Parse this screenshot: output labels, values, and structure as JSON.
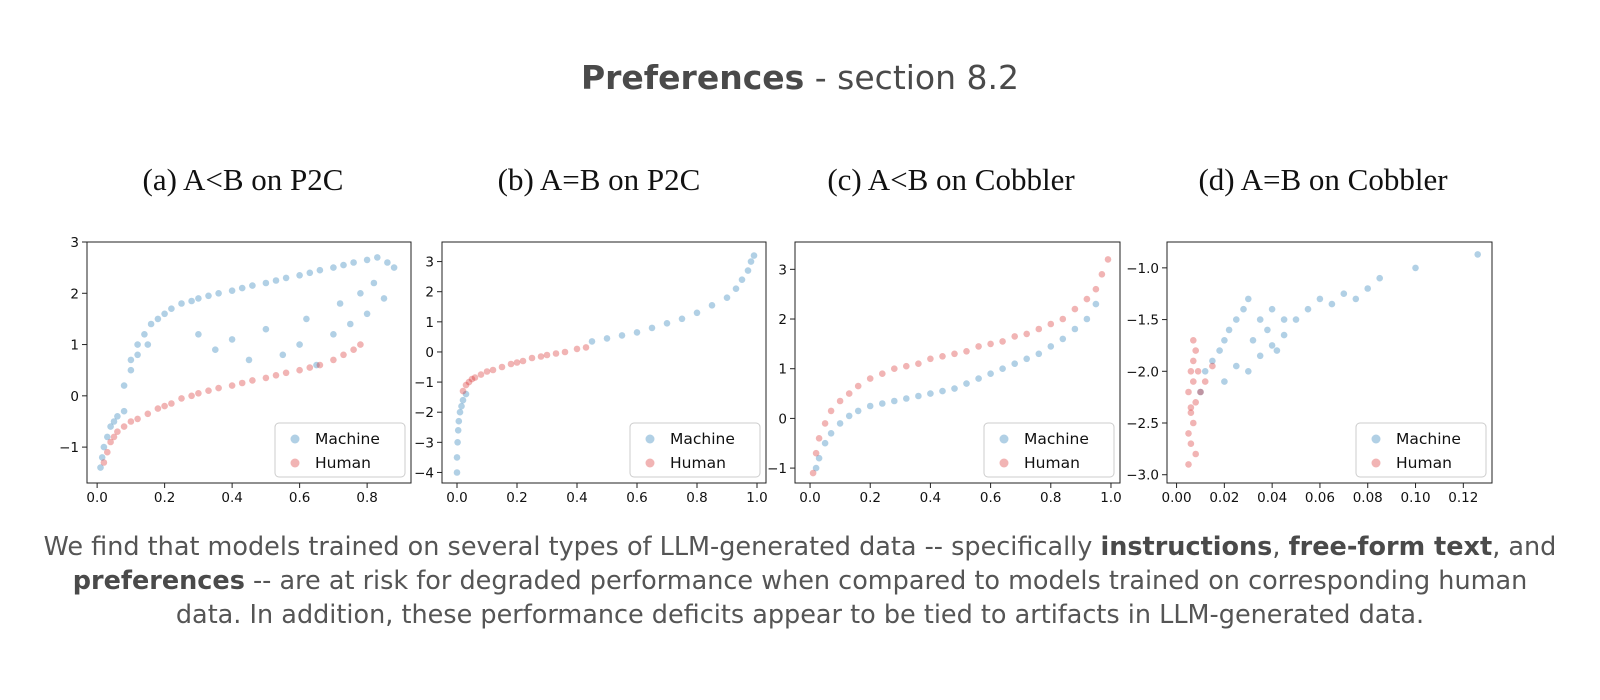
{
  "title": {
    "bold": "Preferences",
    "rest": " - section 8.2"
  },
  "colors": {
    "machine": "#1f77b4",
    "human": "#d62728",
    "text": "#4a4a4a"
  },
  "chart_data": [
    {
      "type": "scatter",
      "subtitle": "(a) A<B on P2C",
      "xlim": [
        -0.03,
        0.93
      ],
      "ylim": [
        -1.7,
        3.0
      ],
      "xticks": [
        "0.0",
        "0.2",
        "0.4",
        "0.6",
        "0.8"
      ],
      "yticks": [
        "3",
        "2",
        "1",
        "0",
        "−1"
      ],
      "xtick_values": [
        0,
        0.2,
        0.4,
        0.6,
        0.8
      ],
      "ytick_values": [
        3,
        2,
        1,
        0,
        -1
      ],
      "legend": "bottom-right",
      "series": [
        {
          "name": "Machine",
          "x": [
            0.01,
            0.015,
            0.02,
            0.03,
            0.04,
            0.05,
            0.06,
            0.08,
            0.1,
            0.12,
            0.14,
            0.16,
            0.18,
            0.2,
            0.22,
            0.25,
            0.28,
            0.3,
            0.33,
            0.36,
            0.4,
            0.43,
            0.46,
            0.5,
            0.53,
            0.56,
            0.6,
            0.63,
            0.66,
            0.7,
            0.73,
            0.76,
            0.8,
            0.83,
            0.86,
            0.88,
            0.08,
            0.1,
            0.12,
            0.15,
            0.3,
            0.35,
            0.4,
            0.45,
            0.5,
            0.55,
            0.6,
            0.62,
            0.65,
            0.7,
            0.72,
            0.75,
            0.78,
            0.8,
            0.82,
            0.85
          ],
          "y": [
            -1.4,
            -1.2,
            -1.0,
            -0.8,
            -0.6,
            -0.5,
            -0.4,
            -0.3,
            0.7,
            1.0,
            1.2,
            1.4,
            1.5,
            1.6,
            1.7,
            1.8,
            1.85,
            1.9,
            1.95,
            2.0,
            2.05,
            2.1,
            2.15,
            2.2,
            2.25,
            2.3,
            2.35,
            2.4,
            2.45,
            2.5,
            2.55,
            2.6,
            2.65,
            2.7,
            2.6,
            2.5,
            0.2,
            0.5,
            0.8,
            1.0,
            1.2,
            0.9,
            1.1,
            0.7,
            1.3,
            0.8,
            1.0,
            1.5,
            0.6,
            1.2,
            1.8,
            1.4,
            2.0,
            1.6,
            2.2,
            1.9
          ]
        },
        {
          "name": "Human",
          "x": [
            0.02,
            0.03,
            0.04,
            0.05,
            0.06,
            0.08,
            0.1,
            0.12,
            0.15,
            0.18,
            0.2,
            0.22,
            0.25,
            0.28,
            0.3,
            0.33,
            0.36,
            0.4,
            0.43,
            0.46,
            0.5,
            0.53,
            0.56,
            0.6,
            0.63,
            0.66,
            0.7,
            0.73,
            0.76,
            0.78
          ],
          "y": [
            -1.3,
            -1.1,
            -0.9,
            -0.8,
            -0.7,
            -0.6,
            -0.5,
            -0.45,
            -0.35,
            -0.25,
            -0.2,
            -0.15,
            -0.05,
            0.0,
            0.05,
            0.1,
            0.15,
            0.2,
            0.25,
            0.3,
            0.35,
            0.4,
            0.45,
            0.5,
            0.55,
            0.6,
            0.7,
            0.8,
            0.9,
            1.0
          ]
        }
      ]
    },
    {
      "type": "scatter",
      "subtitle": "(b) A=B on P2C",
      "xlim": [
        -0.05,
        1.03
      ],
      "ylim": [
        -4.35,
        3.65
      ],
      "xticks": [
        "0.0",
        "0.2",
        "0.4",
        "0.6",
        "0.8",
        "1.0"
      ],
      "yticks": [
        "3",
        "2",
        "1",
        "0",
        "−1",
        "−2",
        "−3",
        "−4"
      ],
      "xtick_values": [
        0,
        0.2,
        0.4,
        0.6,
        0.8,
        1.0
      ],
      "ytick_values": [
        3,
        2,
        1,
        0,
        -1,
        -2,
        -3,
        -4
      ],
      "legend": "bottom-right",
      "series": [
        {
          "name": "Machine",
          "x": [
            0.0,
            0.0,
            0.002,
            0.004,
            0.006,
            0.01,
            0.015,
            0.02,
            0.03,
            0.45,
            0.5,
            0.55,
            0.6,
            0.65,
            0.7,
            0.75,
            0.8,
            0.85,
            0.9,
            0.93,
            0.95,
            0.97,
            0.98,
            0.99
          ],
          "y": [
            -4.0,
            -3.5,
            -3.0,
            -2.6,
            -2.3,
            -2.0,
            -1.8,
            -1.6,
            -1.4,
            0.35,
            0.45,
            0.55,
            0.65,
            0.8,
            0.95,
            1.1,
            1.3,
            1.55,
            1.8,
            2.1,
            2.4,
            2.7,
            3.0,
            3.2
          ]
        },
        {
          "name": "Human",
          "x": [
            0.02,
            0.03,
            0.04,
            0.05,
            0.06,
            0.08,
            0.1,
            0.12,
            0.15,
            0.18,
            0.2,
            0.22,
            0.25,
            0.28,
            0.3,
            0.33,
            0.36,
            0.4,
            0.43
          ],
          "y": [
            -1.3,
            -1.1,
            -1.0,
            -0.9,
            -0.85,
            -0.75,
            -0.65,
            -0.6,
            -0.5,
            -0.4,
            -0.35,
            -0.3,
            -0.2,
            -0.15,
            -0.1,
            -0.05,
            0.0,
            0.1,
            0.15
          ]
        }
      ]
    },
    {
      "type": "scatter",
      "subtitle": "(c) A<B on Cobbler",
      "xlim": [
        -0.05,
        1.03
      ],
      "ylim": [
        -1.3,
        3.55
      ],
      "xticks": [
        "0.0",
        "0.2",
        "0.4",
        "0.6",
        "0.8",
        "1.0"
      ],
      "yticks": [
        "3",
        "2",
        "1",
        "0",
        "−1"
      ],
      "xtick_values": [
        0,
        0.2,
        0.4,
        0.6,
        0.8,
        1.0
      ],
      "ytick_values": [
        3,
        2,
        1,
        0,
        -1
      ],
      "legend": "bottom-right",
      "series": [
        {
          "name": "Machine",
          "x": [
            0.02,
            0.03,
            0.05,
            0.07,
            0.1,
            0.13,
            0.16,
            0.2,
            0.24,
            0.28,
            0.32,
            0.36,
            0.4,
            0.44,
            0.48,
            0.52,
            0.56,
            0.6,
            0.64,
            0.68,
            0.72,
            0.76,
            0.8,
            0.84,
            0.88,
            0.92,
            0.95
          ],
          "y": [
            -1.0,
            -0.8,
            -0.5,
            -0.3,
            -0.1,
            0.05,
            0.15,
            0.25,
            0.3,
            0.35,
            0.4,
            0.45,
            0.5,
            0.55,
            0.6,
            0.7,
            0.8,
            0.9,
            1.0,
            1.1,
            1.2,
            1.3,
            1.45,
            1.6,
            1.8,
            2.0,
            2.3
          ]
        },
        {
          "name": "Human",
          "x": [
            0.01,
            0.02,
            0.03,
            0.05,
            0.07,
            0.1,
            0.13,
            0.16,
            0.2,
            0.24,
            0.28,
            0.32,
            0.36,
            0.4,
            0.44,
            0.48,
            0.52,
            0.56,
            0.6,
            0.64,
            0.68,
            0.72,
            0.76,
            0.8,
            0.84,
            0.88,
            0.92,
            0.95,
            0.97,
            0.99
          ],
          "y": [
            -1.1,
            -0.7,
            -0.4,
            -0.1,
            0.15,
            0.35,
            0.5,
            0.65,
            0.8,
            0.9,
            1.0,
            1.05,
            1.1,
            1.2,
            1.25,
            1.3,
            1.35,
            1.45,
            1.5,
            1.55,
            1.65,
            1.7,
            1.8,
            1.9,
            2.0,
            2.2,
            2.4,
            2.6,
            2.9,
            3.2
          ]
        }
      ]
    },
    {
      "type": "scatter",
      "subtitle": "(d) A=B on Cobbler",
      "xlim": [
        -0.004,
        0.132
      ],
      "ylim": [
        -3.08,
        -0.75
      ],
      "xticks": [
        "0.00",
        "0.02",
        "0.04",
        "0.06",
        "0.08",
        "0.10",
        "0.12"
      ],
      "yticks": [
        "−1.0",
        "−1.5",
        "−2.0",
        "−2.5",
        "−3.0"
      ],
      "xtick_values": [
        0,
        0.02,
        0.04,
        0.06,
        0.08,
        0.1,
        0.12
      ],
      "ytick_values": [
        -1.0,
        -1.5,
        -2.0,
        -2.5,
        -3.0
      ],
      "legend": "bottom-right",
      "series": [
        {
          "name": "Machine",
          "x": [
            0.01,
            0.012,
            0.015,
            0.018,
            0.02,
            0.022,
            0.025,
            0.028,
            0.03,
            0.032,
            0.035,
            0.038,
            0.04,
            0.042,
            0.045,
            0.05,
            0.055,
            0.06,
            0.065,
            0.07,
            0.075,
            0.08,
            0.085,
            0.1,
            0.126,
            0.02,
            0.025,
            0.03,
            0.035,
            0.04,
            0.045
          ],
          "y": [
            -2.2,
            -2.0,
            -1.9,
            -1.8,
            -1.7,
            -1.6,
            -1.5,
            -1.4,
            -1.3,
            -1.7,
            -1.5,
            -1.6,
            -1.4,
            -1.8,
            -1.5,
            -1.5,
            -1.4,
            -1.3,
            -1.35,
            -1.25,
            -1.3,
            -1.2,
            -1.1,
            -1.0,
            -0.87,
            -2.1,
            -1.95,
            -2.0,
            -1.85,
            -1.75,
            -1.65
          ]
        },
        {
          "name": "Human",
          "x": [
            0.005,
            0.006,
            0.007,
            0.008,
            0.005,
            0.006,
            0.007,
            0.008,
            0.005,
            0.006,
            0.007,
            0.008,
            0.006,
            0.007,
            0.009,
            0.01,
            0.012,
            0.015
          ],
          "y": [
            -2.9,
            -2.7,
            -2.5,
            -2.3,
            -2.2,
            -2.0,
            -1.9,
            -1.8,
            -2.6,
            -2.4,
            -2.1,
            -2.8,
            -2.35,
            -1.7,
            -2.0,
            -2.2,
            -2.1,
            -1.95
          ]
        }
      ]
    }
  ],
  "legend": {
    "machine": "Machine",
    "human": "Human"
  },
  "caption": {
    "p1": "We find that models trained on several types of LLM-generated data -- specifically ",
    "b1": "instructions",
    "p2": ", ",
    "b2": "free-form text",
    "p3": ", and ",
    "b3": "preferences",
    "p4": " -- are at risk for degraded performance when compared to models trained on corresponding human data. In addition, these performance deficits appear to be tied to artifacts in LLM-generated data."
  }
}
